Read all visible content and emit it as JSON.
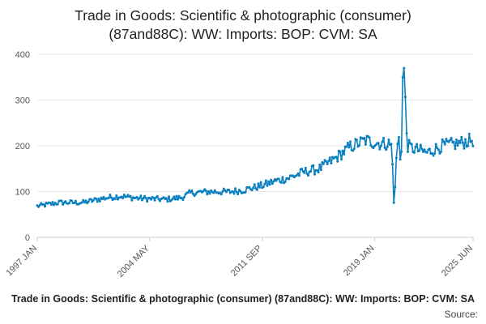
{
  "chart_data": {
    "type": "line",
    "title_line1": "Trade in Goods: Scientific & photographic (consumer)",
    "title_line2": "(87and88C): WW: Imports: BOP: CVM: SA",
    "xlabel": "",
    "ylabel": "",
    "x_start": "1997 JAN",
    "x_end": "2025 JUN",
    "ylim": [
      0,
      400
    ],
    "y_ticks": [
      0,
      100,
      200,
      300,
      400
    ],
    "x_tick_labels": [
      "1997 JAN",
      "2004 MAY",
      "2011 SEP",
      "2019 JAN",
      "2025 JUN"
    ],
    "grid": true,
    "series_color": "#0a7fc0",
    "anchors": [
      [
        "1997-01",
        68
      ],
      [
        "1998-06",
        76
      ],
      [
        "2000-01",
        76
      ],
      [
        "2001-06",
        86
      ],
      [
        "2002-06",
        90
      ],
      [
        "2003-06",
        86
      ],
      [
        "2004-05",
        84
      ],
      [
        "2005-06",
        83
      ],
      [
        "2006-06",
        87
      ],
      [
        "2007-01",
        97
      ],
      [
        "2008-06",
        100
      ],
      [
        "2009-06",
        99
      ],
      [
        "2010-06",
        103
      ],
      [
        "2011-09",
        113
      ],
      [
        "2012-06",
        122
      ],
      [
        "2013-06",
        130
      ],
      [
        "2014-06",
        143
      ],
      [
        "2015-06",
        150
      ],
      [
        "2016-06",
        172
      ],
      [
        "2017-06",
        198
      ],
      [
        "2018-06",
        212
      ],
      [
        "2019-01",
        207
      ],
      [
        "2019-06",
        205
      ],
      [
        "2019-12",
        205
      ],
      [
        "2020-02",
        200
      ],
      [
        "2020-03",
        158
      ],
      [
        "2020-04",
        80
      ],
      [
        "2020-05",
        105
      ],
      [
        "2020-06",
        175
      ],
      [
        "2020-07",
        200
      ],
      [
        "2020-08",
        215
      ],
      [
        "2020-09",
        175
      ],
      [
        "2020-10",
        198
      ],
      [
        "2020-11",
        345
      ],
      [
        "2020-12",
        367
      ],
      [
        "2021-01",
        295
      ],
      [
        "2021-02",
        230
      ],
      [
        "2021-03",
        200
      ],
      [
        "2021-06",
        195
      ],
      [
        "2022-06",
        185
      ],
      [
        "2023-06",
        200
      ],
      [
        "2024-06",
        205
      ],
      [
        "2025-06",
        213
      ]
    ],
    "noise_amplitude": 6
  },
  "footer": {
    "caption": "Trade in Goods: Scientific & photographic (consumer) (87and88C): WW: Imports: BOP: CVM: SA",
    "source": "Source:"
  }
}
